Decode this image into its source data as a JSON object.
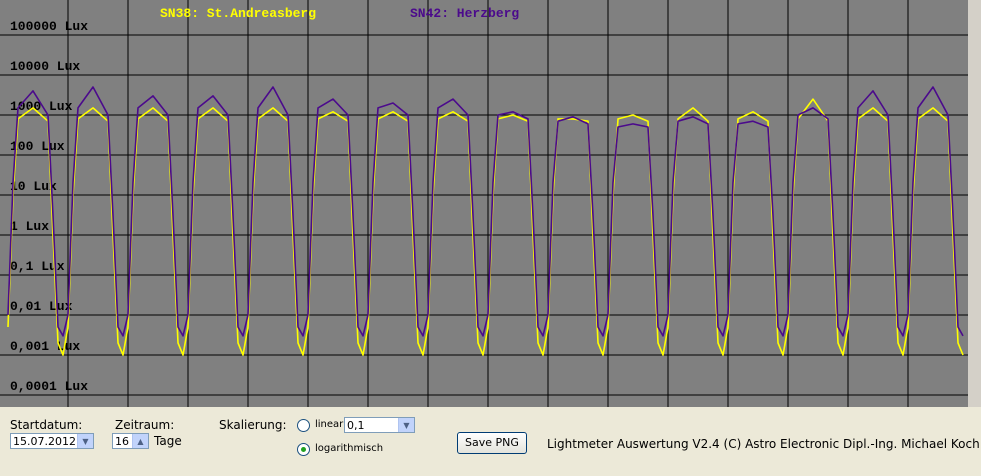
{
  "chart_data": {
    "type": "line",
    "legend": [
      "SN38: St.Andreasberg",
      "SN42: Herzberg"
    ],
    "yscale": "log",
    "grid": true,
    "xlim": [
      0,
      384
    ],
    "xticks": [
      24,
      48,
      72,
      96,
      120,
      144,
      168,
      192,
      216,
      240,
      264,
      288,
      312,
      336,
      360
    ],
    "ylim": [
      5e-05,
      750000
    ],
    "yticks": [
      {
        "value": 100000,
        "label": "100000 Lux"
      },
      {
        "value": 10000,
        "label": "10000 Lux"
      },
      {
        "value": 1000,
        "label": "1000 Lux"
      },
      {
        "value": 100,
        "label": "100 Lux"
      },
      {
        "value": 10,
        "label": "10 Lux"
      },
      {
        "value": 1,
        "label": "1 Lux"
      },
      {
        "value": 0.1,
        "label": "0,1 Lux"
      },
      {
        "value": 0.01,
        "label": "0,01 Lux"
      },
      {
        "value": 0.001,
        "label": "0,001 Lux"
      },
      {
        "value": 0.0001,
        "label": "0,0001 Lux"
      }
    ],
    "x": [
      0,
      2,
      4,
      10,
      16,
      18,
      20,
      22,
      24,
      26,
      28,
      34,
      40,
      42,
      44,
      46,
      48,
      50,
      52,
      58,
      64,
      66,
      68,
      70,
      72,
      74,
      76,
      82,
      88,
      90,
      92,
      94,
      96,
      98,
      100,
      106,
      112,
      114,
      116,
      118,
      120,
      122,
      124,
      130,
      136,
      138,
      140,
      142,
      144,
      146,
      148,
      154,
      160,
      162,
      164,
      166,
      168,
      170,
      172,
      178,
      184,
      186,
      188,
      190,
      192,
      194,
      196,
      202,
      208,
      210,
      212,
      214,
      216,
      218,
      220,
      226,
      232,
      234,
      236,
      238,
      240,
      242,
      244,
      250,
      256,
      258,
      260,
      262,
      264,
      266,
      268,
      274,
      280,
      282,
      284,
      286,
      288,
      290,
      292,
      298,
      304,
      306,
      308,
      310,
      312,
      314,
      316,
      322,
      328,
      330,
      332,
      334,
      336,
      338,
      340,
      346,
      352,
      354,
      356,
      358,
      360,
      362,
      364,
      370,
      376,
      378,
      380,
      382
    ],
    "series": [
      {
        "name": "SN38: St.Andreasberg",
        "color": "#ffff00",
        "values": [
          0.005,
          10,
          800,
          1500,
          700,
          1,
          0.002,
          0.001,
          0.005,
          10,
          800,
          1500,
          700,
          1,
          0.002,
          0.001,
          0.005,
          10,
          800,
          1500,
          700,
          1,
          0.002,
          0.001,
          0.005,
          10,
          800,
          1500,
          700,
          1,
          0.002,
          0.001,
          0.005,
          10,
          800,
          1500,
          700,
          1,
          0.002,
          0.001,
          0.005,
          10,
          800,
          1200,
          700,
          1,
          0.002,
          0.001,
          0.005,
          10,
          800,
          1200,
          700,
          1,
          0.002,
          0.001,
          0.005,
          10,
          800,
          1200,
          700,
          1,
          0.002,
          0.001,
          0.005,
          10,
          800,
          1000,
          700,
          1,
          0.002,
          0.001,
          0.005,
          10,
          800,
          800,
          700,
          1,
          0.002,
          0.001,
          0.005,
          10,
          800,
          1000,
          700,
          1,
          0.002,
          0.001,
          0.005,
          10,
          800,
          1500,
          700,
          1,
          0.002,
          0.001,
          0.005,
          10,
          800,
          1200,
          700,
          1,
          0.002,
          0.001,
          0.005,
          10,
          800,
          2500,
          700,
          1,
          0.002,
          0.001,
          0.005,
          10,
          800,
          1500,
          700,
          1,
          0.002,
          0.001,
          0.005,
          10,
          800,
          1500,
          700,
          1,
          0.002,
          0.001
        ]
      },
      {
        "name": "SN42: Herzberg",
        "color": "#4b0a8c",
        "values": [
          0.01,
          20,
          1500,
          4000,
          1000,
          3,
          0.005,
          0.003,
          0.01,
          20,
          1500,
          5000,
          1000,
          3,
          0.005,
          0.003,
          0.01,
          20,
          1500,
          3000,
          1000,
          3,
          0.005,
          0.003,
          0.01,
          20,
          1500,
          3000,
          1000,
          3,
          0.005,
          0.003,
          0.01,
          20,
          1500,
          5000,
          1000,
          3,
          0.005,
          0.003,
          0.01,
          20,
          1500,
          2500,
          1000,
          3,
          0.005,
          0.003,
          0.01,
          20,
          1500,
          2000,
          1000,
          3,
          0.005,
          0.003,
          0.01,
          20,
          1500,
          2500,
          1000,
          3,
          0.005,
          0.003,
          0.01,
          20,
          1000,
          1200,
          800,
          3,
          0.005,
          0.003,
          0.01,
          20,
          700,
          900,
          600,
          3,
          0.005,
          0.003,
          0.01,
          20,
          500,
          600,
          500,
          3,
          0.005,
          0.003,
          0.01,
          20,
          700,
          900,
          600,
          3,
          0.005,
          0.003,
          0.01,
          20,
          600,
          700,
          500,
          3,
          0.005,
          0.003,
          0.01,
          20,
          1000,
          1500,
          800,
          3,
          0.005,
          0.003,
          0.01,
          20,
          1500,
          4000,
          1000,
          3,
          0.005,
          0.003,
          0.01,
          20,
          1500,
          5000,
          1000,
          3,
          0.005,
          0.003
        ]
      }
    ]
  },
  "controls": {
    "start_label": "Startdatum:",
    "start_date": "15.07.2012",
    "period_label": "Zeitraum:",
    "period_value": 16,
    "period_unit": "Tage",
    "scale_label": "Skalierung:",
    "linear": "linear",
    "linear_value": "0,1",
    "log": "logarithmisch",
    "save_button": "Save PNG",
    "footer": "Lightmeter Auswertung V2.4  (C) Astro Electronic Dipl.-Ing. Michael Koch"
  }
}
